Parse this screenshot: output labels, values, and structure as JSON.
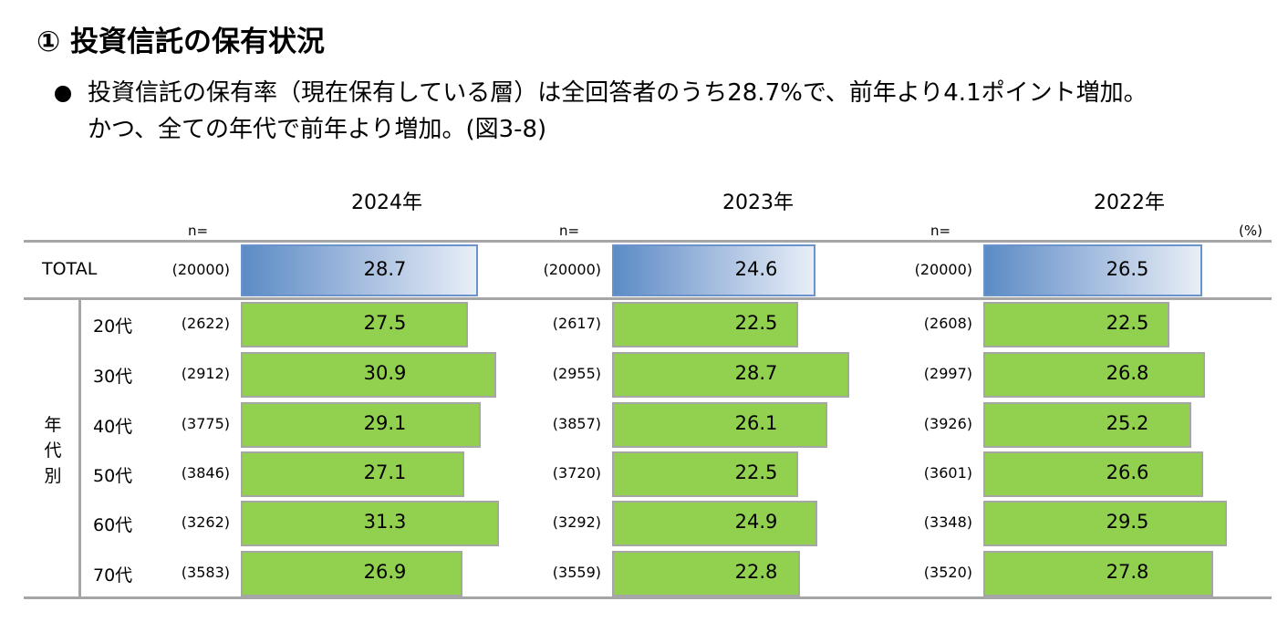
{
  "header": {
    "title": "① 投資信託の保有状況",
    "bullet_line1": "投資信託の保有率（現在保有している層）は全回答者のうち28.7%で、前年より4.1ポイント増加。",
    "bullet_line2": "かつ、全ての年代で前年より増加。(図3-8)"
  },
  "chart_data": {
    "type": "bar",
    "orientation": "horizontal",
    "title": "投資信託の保有率",
    "unit_label": "(%)",
    "n_label": "n=",
    "group_label": "年代別",
    "colors": {
      "total": "#5b8bc5",
      "age": "#92d050",
      "age_border": "#a6a6a6"
    },
    "categories": [
      "TOTAL",
      "20代",
      "30代",
      "40代",
      "50代",
      "60代",
      "70代"
    ],
    "panels": [
      {
        "year": "2024年",
        "n": [
          "(20000)",
          "(2622)",
          "(2912)",
          "(3775)",
          "(3846)",
          "(3262)",
          "(3583)"
        ],
        "values": [
          28.7,
          27.5,
          30.9,
          29.1,
          27.1,
          31.3,
          26.9
        ]
      },
      {
        "year": "2023年",
        "n": [
          "(20000)",
          "(2617)",
          "(2955)",
          "(3857)",
          "(3720)",
          "(3292)",
          "(3559)"
        ],
        "values": [
          24.6,
          22.5,
          28.7,
          26.1,
          22.5,
          24.9,
          22.8
        ]
      },
      {
        "year": "2022年",
        "n": [
          "(20000)",
          "(2608)",
          "(2997)",
          "(3926)",
          "(3601)",
          "(3348)",
          "(3520)"
        ],
        "values": [
          26.5,
          22.5,
          26.8,
          25.2,
          26.6,
          29.5,
          27.8
        ]
      }
    ]
  }
}
